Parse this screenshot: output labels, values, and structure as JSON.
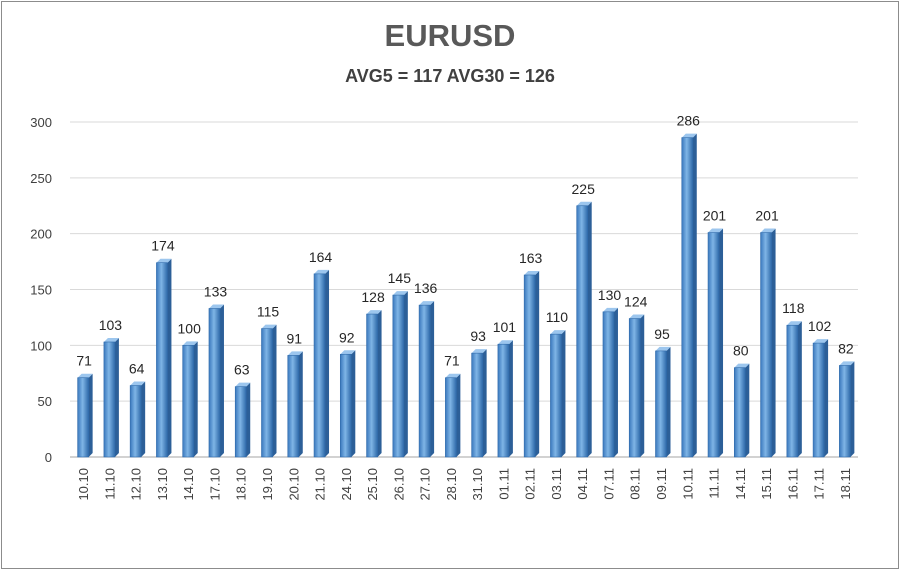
{
  "chart_data": {
    "type": "bar",
    "title": "EURUSD",
    "subtitle": "AVG5 = 117 AVG30 = 126",
    "xlabel": "",
    "ylabel": "",
    "ylim": [
      0,
      300
    ],
    "yticks": [
      0,
      50,
      100,
      150,
      200,
      250,
      300
    ],
    "grid": true,
    "legend": "none",
    "bar_color": "#5b9bd5",
    "categories": [
      "10.10",
      "11.10",
      "12.10",
      "13.10",
      "14.10",
      "17.10",
      "18.10",
      "19.10",
      "20.10",
      "21.10",
      "24.10",
      "25.10",
      "26.10",
      "27.10",
      "28.10",
      "31.10",
      "01.11",
      "02.11",
      "03.11",
      "04.11",
      "07.11",
      "08.11",
      "09.11",
      "10.11",
      "11.11",
      "14.11",
      "15.11",
      "16.11",
      "17.11",
      "18.11"
    ],
    "values": [
      71,
      103,
      64,
      174,
      100,
      133,
      63,
      115,
      91,
      164,
      92,
      128,
      145,
      136,
      71,
      93,
      101,
      163,
      110,
      225,
      130,
      124,
      95,
      286,
      201,
      80,
      201,
      118,
      102,
      82
    ]
  }
}
